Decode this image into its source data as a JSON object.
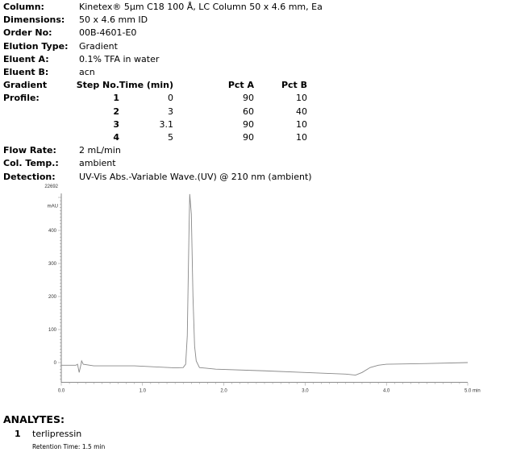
{
  "info": [
    {
      "label": "Column:",
      "value": "Kinetex® 5µm C18 100 Å, LC Column 50 x 4.6 mm, Ea"
    },
    {
      "label": "Dimensions:",
      "value": "50 x 4.6 mm ID"
    },
    {
      "label": "Order No:",
      "value": "00B-4601-E0"
    },
    {
      "label": "Elution Type:",
      "value": "Gradient"
    },
    {
      "label": "Eluent A:",
      "value": "0.1% TFA in water"
    },
    {
      "label": "Eluent B:",
      "value": "acn"
    }
  ],
  "gradient": {
    "label1": "Gradient",
    "label2": "Profile:",
    "headers": [
      "Step No.",
      "Time (min)",
      "Pct A",
      "Pct B"
    ],
    "rows": [
      [
        "1",
        "0",
        "90",
        "10"
      ],
      [
        "2",
        "3",
        "60",
        "40"
      ],
      [
        "3",
        "3.1",
        "90",
        "10"
      ],
      [
        "4",
        "5",
        "90",
        "10"
      ]
    ]
  },
  "info2": [
    {
      "label": "Flow Rate:",
      "value": "2 mL/min"
    },
    {
      "label": "Col. Temp.:",
      "value": "ambient"
    },
    {
      "label": "Detection:",
      "value": "UV-Vis Abs.-Variable Wave.(UV) @ 210 nm (ambient)"
    }
  ],
  "chart_data": {
    "type": "line",
    "top_label": "22692",
    "ylabel": "mAU",
    "xlabel": "min",
    "xlim": [
      0,
      5
    ],
    "ylim": [
      -60,
      512
    ],
    "xticks": [
      "0.0",
      "1.0",
      "2.0",
      "3.0",
      "4.0",
      "5.0 min"
    ],
    "yticks": [
      "0",
      "100",
      "200",
      "300",
      "400"
    ],
    "line_color": "#888888",
    "series": [
      {
        "x": [
          0,
          0.18,
          0.2,
          0.22,
          0.24,
          0.25,
          0.27,
          0.4,
          0.9,
          1.4,
          1.5,
          1.53,
          1.55,
          1.57,
          1.58,
          1.6,
          1.62,
          1.64,
          1.66,
          1.7,
          1.9,
          2.5,
          3.0,
          3.5,
          3.62,
          3.7,
          3.8,
          3.9,
          4.0,
          4.5,
          5.0
        ],
        "y": [
          -8,
          -8,
          -5,
          -30,
          -8,
          5,
          -5,
          -10,
          -10,
          -16,
          -15,
          -5,
          80,
          380,
          510,
          450,
          200,
          50,
          5,
          -15,
          -20,
          -25,
          -30,
          -35,
          -38,
          -30,
          -15,
          -8,
          -5,
          -3,
          0
        ]
      }
    ]
  },
  "analytes": {
    "title": "ANALYTES:",
    "items": [
      {
        "num": "1",
        "name": "terlipressin",
        "retention": "Retention Time: 1.5 min"
      }
    ]
  }
}
